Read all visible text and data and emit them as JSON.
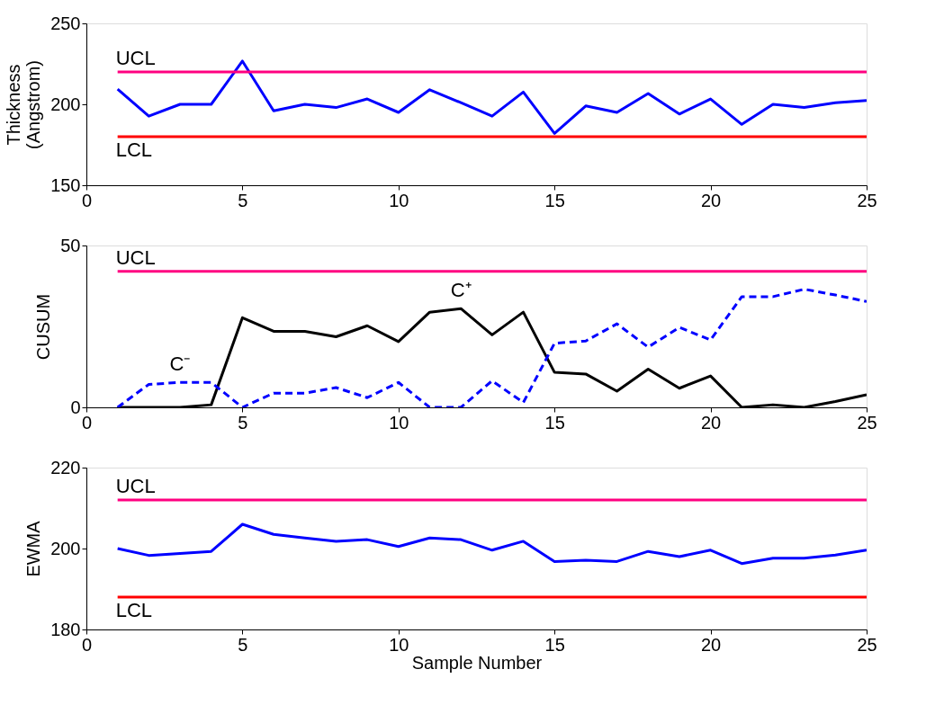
{
  "chart_data": [
    {
      "type": "line",
      "ylabel": "Thickness\n(Angstrom)",
      "x": [
        1,
        2,
        3,
        4,
        5,
        6,
        7,
        8,
        9,
        10,
        11,
        12,
        13,
        14,
        15,
        16,
        17,
        18,
        19,
        20,
        21,
        22,
        23,
        24,
        25
      ],
      "xlim": [
        0,
        25
      ],
      "xticks": [
        0,
        5,
        10,
        15,
        20,
        25
      ],
      "ylim": [
        150,
        250
      ],
      "yticks": [
        150,
        200,
        250
      ],
      "grid": false,
      "marker": "none",
      "series": [
        {
          "color": "#0000ff",
          "line_style": "solid",
          "values": [
            209.4,
            192.7,
            200,
            200,
            226.7,
            196,
            200,
            198,
            203.3,
            195,
            209,
            201,
            192.7,
            207.6,
            182,
            199,
            195,
            206.7,
            194,
            203.3,
            187.6,
            200,
            198,
            201,
            202.4
          ]
        }
      ],
      "ref_lines": [
        {
          "axis": "y",
          "value": 220,
          "label": "UCL",
          "color": "#ff0080"
        },
        {
          "axis": "y",
          "value": 180,
          "label": "LCL",
          "color": "#ff0000"
        }
      ]
    },
    {
      "type": "line",
      "ylabel": "CUSUM",
      "x": [
        1,
        2,
        3,
        4,
        5,
        6,
        7,
        8,
        9,
        10,
        11,
        12,
        13,
        14,
        15,
        16,
        17,
        18,
        19,
        20,
        21,
        22,
        23,
        24,
        25
      ],
      "xlim": [
        0,
        25
      ],
      "xticks": [
        0,
        5,
        10,
        15,
        20,
        25
      ],
      "ylim": [
        0,
        50
      ],
      "yticks": [
        0,
        50
      ],
      "grid": false,
      "marker": "none",
      "series": [
        {
          "name": "C⁺",
          "color": "#000000",
          "line_style": "solid",
          "values": [
            0,
            0,
            0,
            0.8,
            27.7,
            23.5,
            23.5,
            21.8,
            25.2,
            20.3,
            29.4,
            30.5,
            22.4,
            29.4,
            10.8,
            10.3,
            5,
            11.8,
            5.9,
            9.7,
            0,
            0.8,
            0,
            1.8,
            3.9
          ]
        },
        {
          "name": "C⁻",
          "color": "#0000ff",
          "line_style": "dashed",
          "values": [
            0,
            7.1,
            7.7,
            7.7,
            0,
            4.4,
            4.4,
            6.1,
            3,
            7.7,
            0,
            0,
            8.2,
            1.5,
            19.8,
            20.5,
            25.8,
            18.6,
            24.7,
            20.8,
            34.2,
            34.2,
            36.5,
            34.7,
            32.7
          ]
        }
      ],
      "ref_lines": [
        {
          "axis": "y",
          "value": 42,
          "label": "UCL",
          "color": "#ff0080"
        }
      ]
    },
    {
      "type": "line",
      "ylabel": "EWMA",
      "xlabel": "Sample Number",
      "x": [
        1,
        2,
        3,
        4,
        5,
        6,
        7,
        8,
        9,
        10,
        11,
        12,
        13,
        14,
        15,
        16,
        17,
        18,
        19,
        20,
        21,
        22,
        23,
        24,
        25
      ],
      "xlim": [
        0,
        25
      ],
      "xticks": [
        0,
        5,
        10,
        15,
        20,
        25
      ],
      "ylim": [
        180,
        220
      ],
      "yticks": [
        180,
        200,
        220
      ],
      "grid": false,
      "marker": "none",
      "series": [
        {
          "color": "#0000ff",
          "line_style": "solid",
          "values": [
            200,
            198.3,
            198.8,
            199.3,
            206,
            203.5,
            202.6,
            201.8,
            202.2,
            200.5,
            202.6,
            202.2,
            199.6,
            201.8,
            196.8,
            197.1,
            196.8,
            199.3,
            198,
            199.6,
            196.3,
            197.6,
            197.6,
            198.4,
            199.6
          ]
        }
      ],
      "ref_lines": [
        {
          "axis": "y",
          "value": 212,
          "label": "UCL",
          "color": "#ff0080"
        },
        {
          "axis": "y",
          "value": 188,
          "label": "LCL",
          "color": "#ff0000"
        }
      ]
    }
  ]
}
